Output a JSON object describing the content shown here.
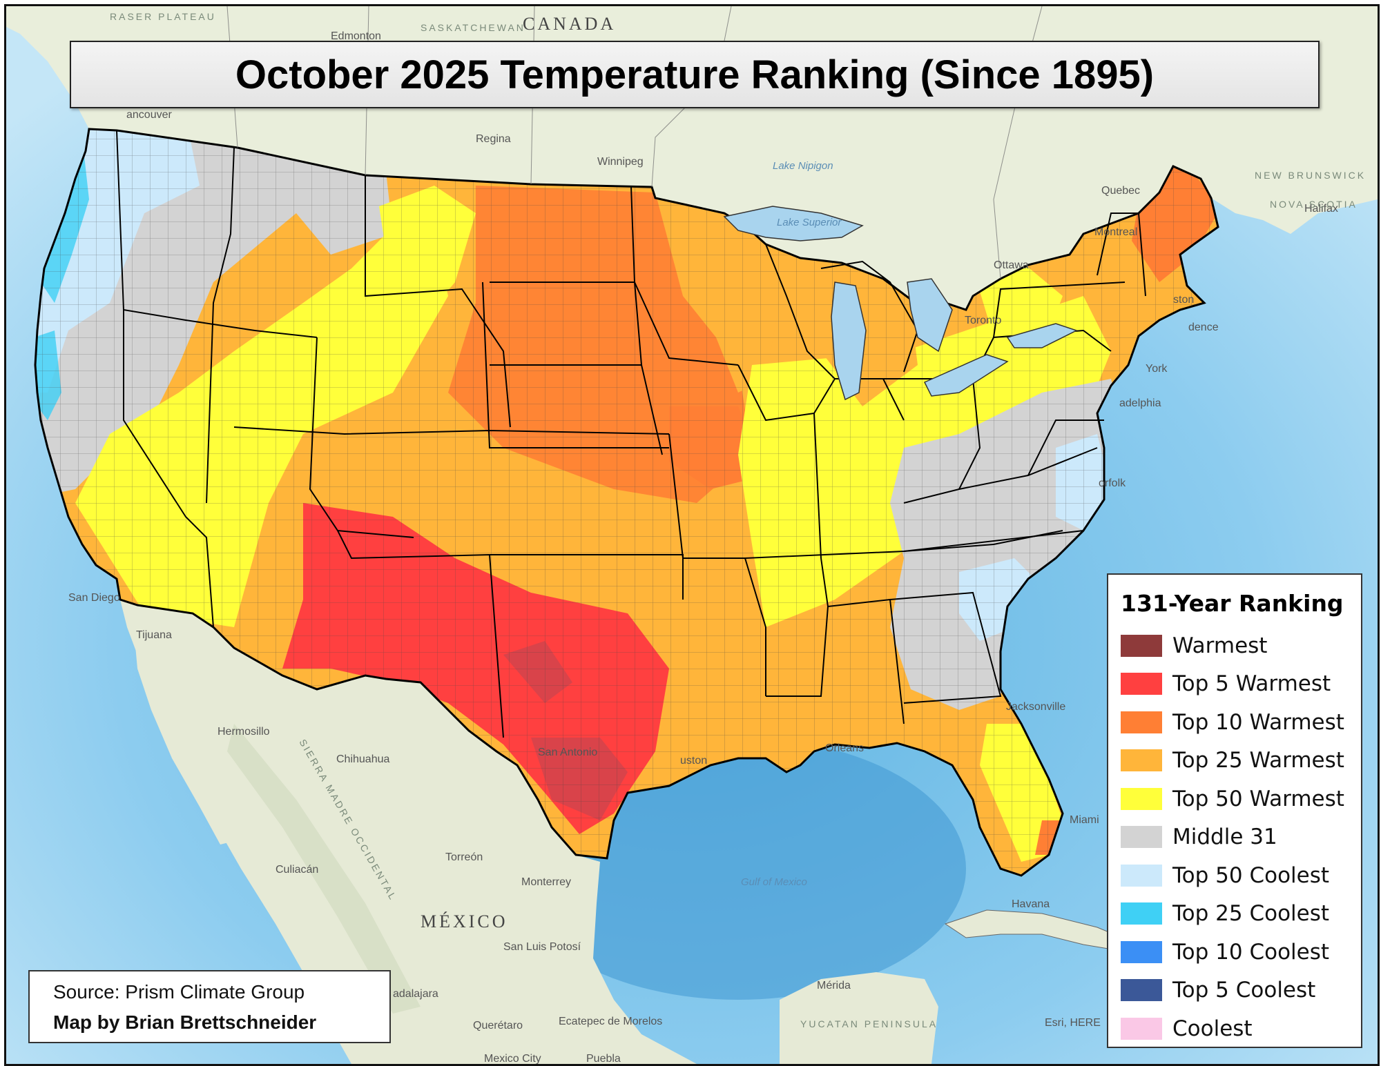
{
  "map": {
    "title": "October 2025 Temperature Ranking (Since 1895)",
    "legend": {
      "title": "131-Year Ranking",
      "items": [
        {
          "label": "Warmest",
          "color": "#8e3a3a"
        },
        {
          "label": "Top 5 Warmest",
          "color": "#ff4040"
        },
        {
          "label": "Top 10 Warmest",
          "color": "#ff7f34"
        },
        {
          "label": "Top 25 Warmest",
          "color": "#ffb53a"
        },
        {
          "label": "Top 50 Warmest",
          "color": "#ffff3a"
        },
        {
          "label": "Middle 31",
          "color": "#d3d3d3"
        },
        {
          "label": "Top 50 Coolest",
          "color": "#cce9fb"
        },
        {
          "label": "Top 25 Coolest",
          "color": "#3fd0f5"
        },
        {
          "label": "Top 10 Coolest",
          "color": "#3b8ff5"
        },
        {
          "label": "Top 5 Coolest",
          "color": "#3b5898"
        },
        {
          "label": "Coolest",
          "color": "#fac8e6"
        }
      ]
    },
    "credits": {
      "source": "Source: Prism Climate Group",
      "author": "Map by Brian Brettschneider"
    },
    "attribution": "Esri, HERE",
    "basemap_labels": {
      "canada": "CANADA",
      "mexico": "MÉXICO",
      "edmonton": "Edmonton",
      "regina": "Regina",
      "winnipeg": "Winnipeg",
      "vancouver": "ancouver",
      "lake_superior": "Lake Superior",
      "lake_nipigon": "Lake Nipigon",
      "quebec": "Quebec",
      "montreal": "Montreal",
      "ottawa": "Ottawa",
      "toronto": "Toronto",
      "halifax": "Halifax",
      "new_brunswick": "NEW BRUNSWICK",
      "nova_scotia": "NOVA SCOTIA",
      "saskatchewan": "SASKATCHEWAN",
      "fraser_plateau": "RASER PLATEAU",
      "san_diego": "San Diego",
      "tijuana": "Tijuana",
      "hermosillo": "Hermosillo",
      "chihuahua": "Chihuahua",
      "culiacan": "Culiacán",
      "torreon": "Torreón",
      "monterrey": "Monterrey",
      "san_luis_potosi": "San Luis Potosí",
      "queretaro": "Querétaro",
      "ecatepec": "Ecatepec de Morelos",
      "mexico_city": "Mexico City",
      "puebla": "Puebla",
      "guadalajara": "adalajara",
      "merida": "Mérida",
      "yucatan": "YUCATAN PENINSULA",
      "havana": "Havana",
      "gulf_of_mexico": "Gulf of Mexico",
      "jacksonville": "Jacksonville",
      "miami": "Miami",
      "orleans": "Orleans",
      "sierra_madre": "SIERRA MADRE OCCIDENTAL",
      "san_antonio": "San Antonio",
      "houston": "uston",
      "norfolk": "orfolk",
      "philadelphia": "adelphia",
      "boston": "ston",
      "providence": "dence",
      "new_york": "York"
    }
  }
}
